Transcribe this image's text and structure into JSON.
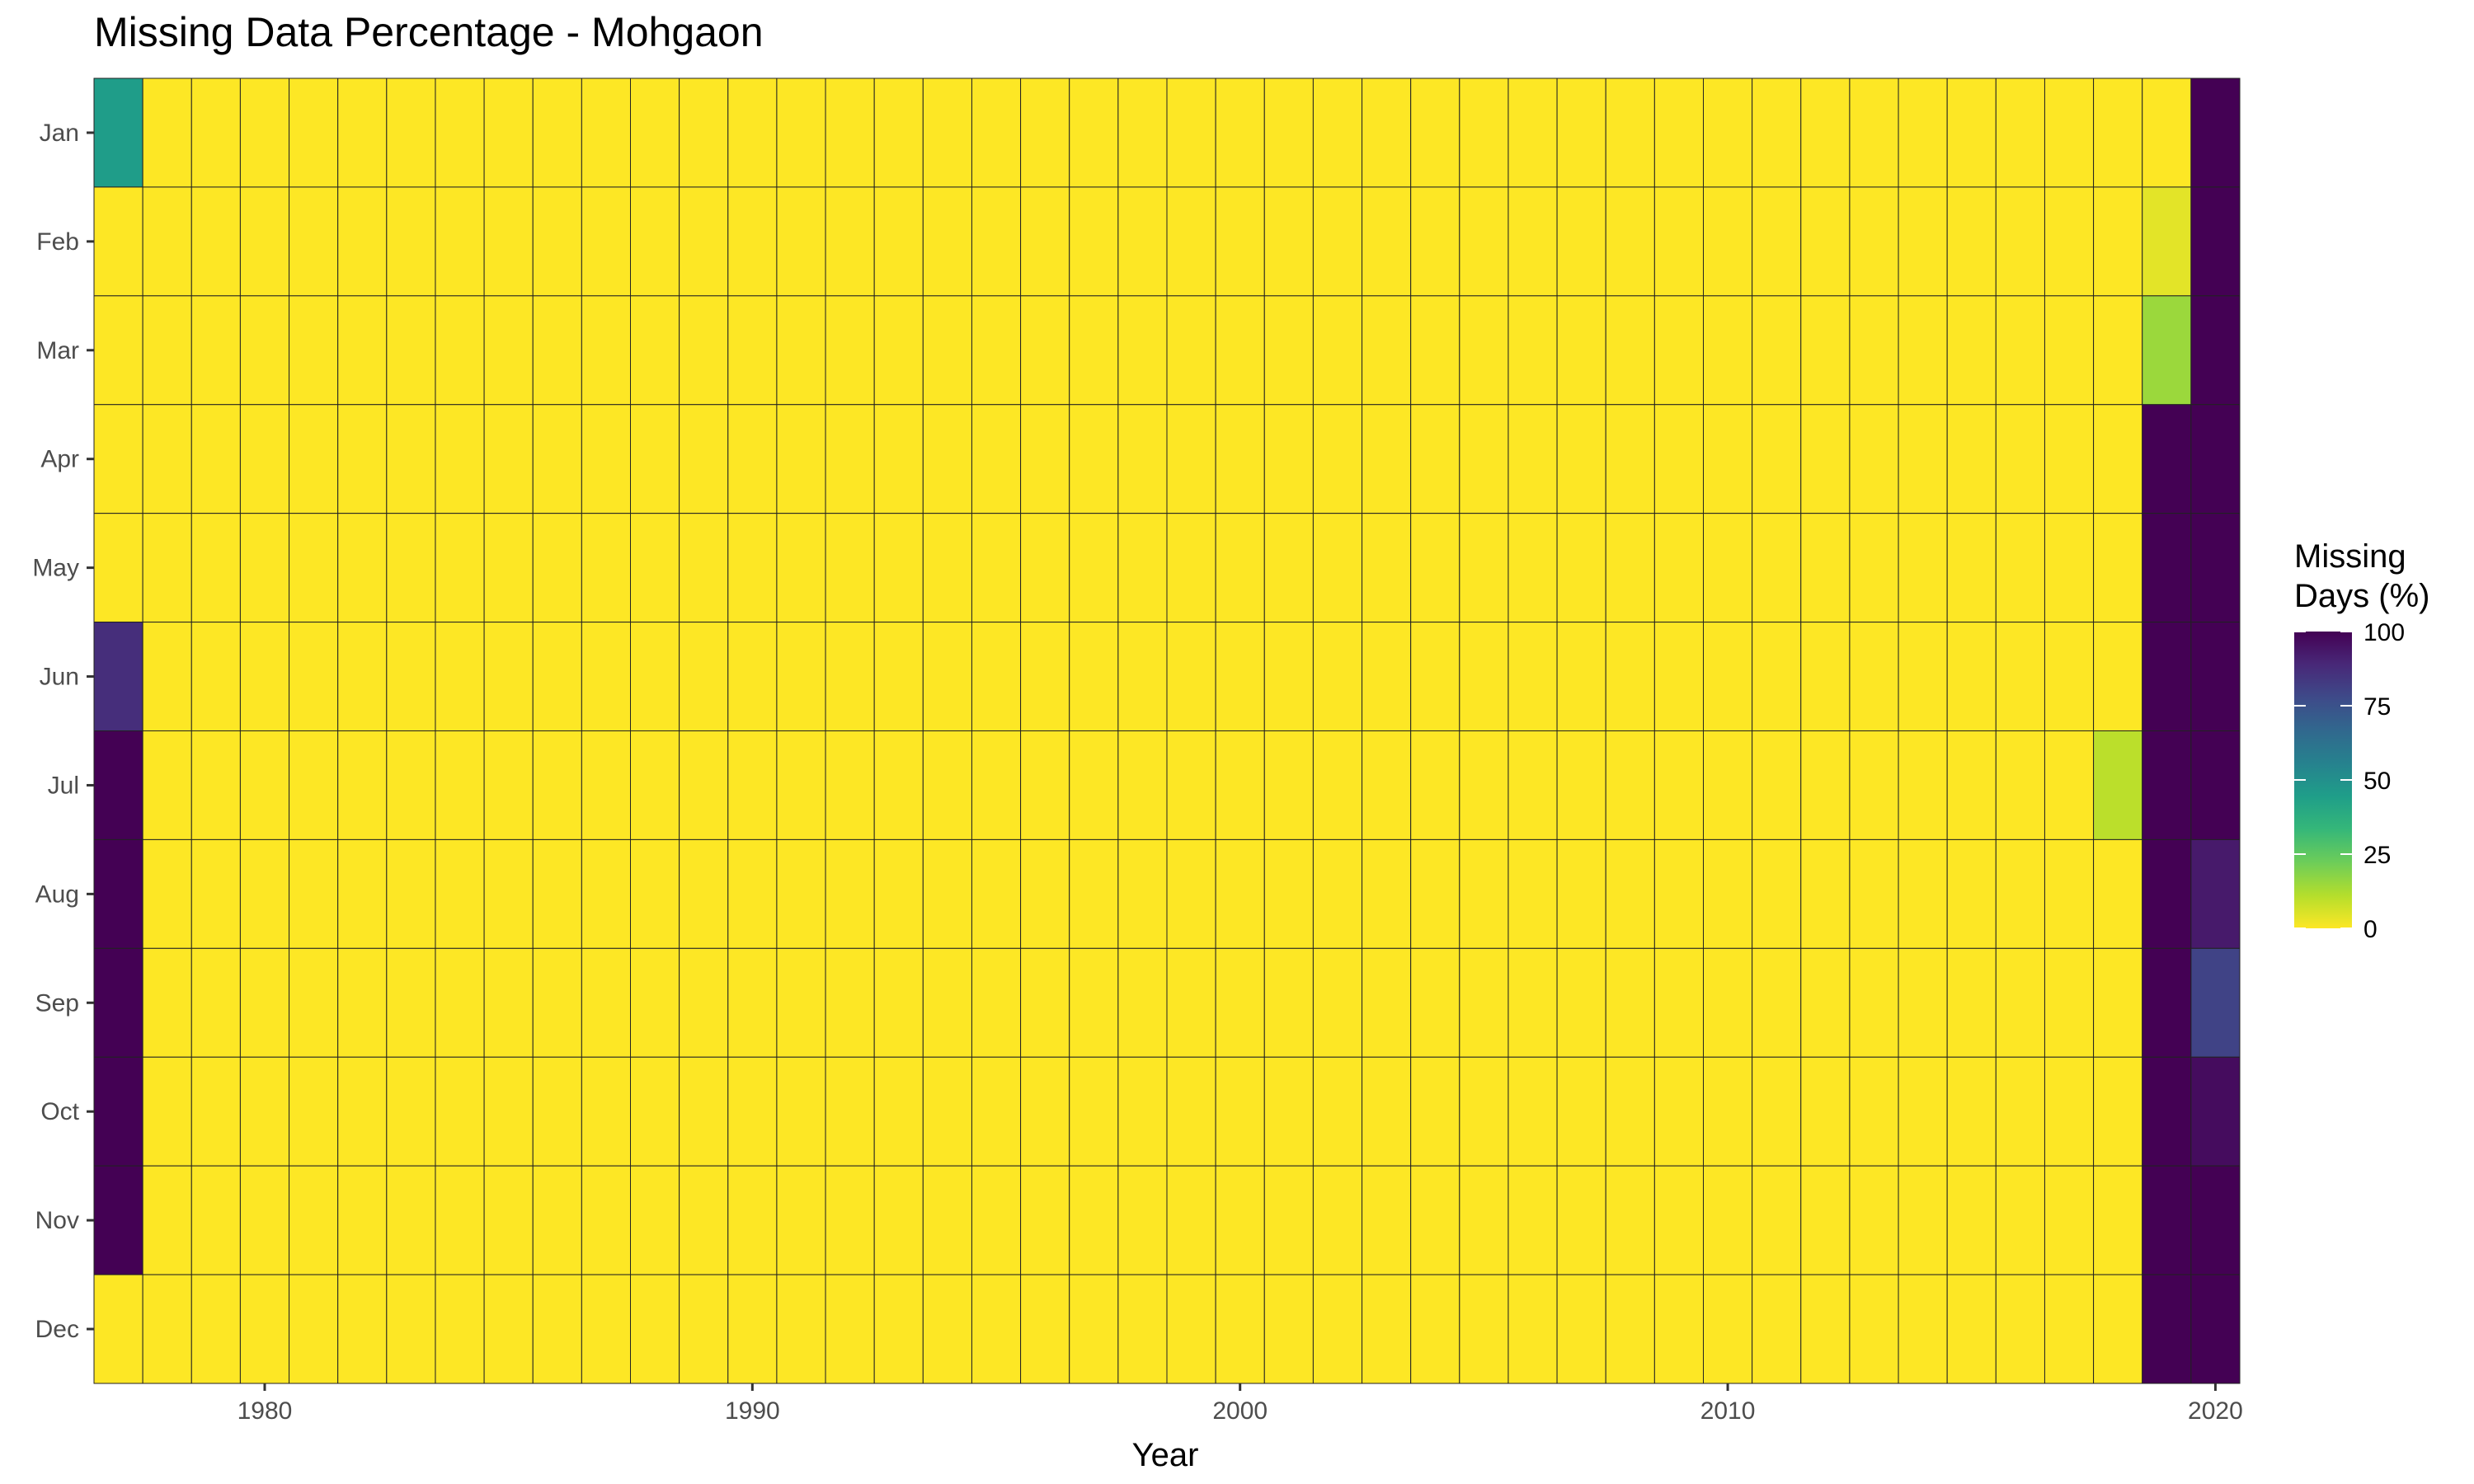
{
  "chart_data": {
    "type": "heatmap",
    "title": "Missing Data Percentage - Mohgaon",
    "xlabel": "Year",
    "ylabel": "",
    "x_start": 1977,
    "x_end": 2020,
    "x_ticks": [
      1980,
      1990,
      2000,
      2010,
      2020
    ],
    "months": [
      "Jan",
      "Feb",
      "Mar",
      "Apr",
      "May",
      "Jun",
      "Jul",
      "Aug",
      "Sep",
      "Oct",
      "Nov",
      "Dec"
    ],
    "default_value": 0,
    "cells": [
      {
        "year": 1977,
        "month": "Jan",
        "value": 45
      },
      {
        "year": 1977,
        "month": "Jun",
        "value": 87
      },
      {
        "year": 1977,
        "month": "Jul",
        "value": 100
      },
      {
        "year": 1977,
        "month": "Aug",
        "value": 100
      },
      {
        "year": 1977,
        "month": "Sep",
        "value": 100
      },
      {
        "year": 1977,
        "month": "Oct",
        "value": 100
      },
      {
        "year": 1977,
        "month": "Nov",
        "value": 100
      },
      {
        "year": 2018,
        "month": "Jul",
        "value": 10
      },
      {
        "year": 2019,
        "month": "Feb",
        "value": 4
      },
      {
        "year": 2019,
        "month": "Mar",
        "value": 15
      },
      {
        "year": 2019,
        "month": "Apr",
        "value": 100
      },
      {
        "year": 2019,
        "month": "May",
        "value": 100
      },
      {
        "year": 2019,
        "month": "Jun",
        "value": 100
      },
      {
        "year": 2019,
        "month": "Jul",
        "value": 100
      },
      {
        "year": 2019,
        "month": "Aug",
        "value": 100
      },
      {
        "year": 2019,
        "month": "Sep",
        "value": 100
      },
      {
        "year": 2019,
        "month": "Oct",
        "value": 100
      },
      {
        "year": 2019,
        "month": "Nov",
        "value": 100
      },
      {
        "year": 2019,
        "month": "Dec",
        "value": 100
      },
      {
        "year": 2020,
        "month": "Jan",
        "value": 100
      },
      {
        "year": 2020,
        "month": "Feb",
        "value": 100
      },
      {
        "year": 2020,
        "month": "Mar",
        "value": 100
      },
      {
        "year": 2020,
        "month": "Apr",
        "value": 100
      },
      {
        "year": 2020,
        "month": "May",
        "value": 100
      },
      {
        "year": 2020,
        "month": "Jun",
        "value": 100
      },
      {
        "year": 2020,
        "month": "Jul",
        "value": 100
      },
      {
        "year": 2020,
        "month": "Aug",
        "value": 93
      },
      {
        "year": 2020,
        "month": "Sep",
        "value": 80
      },
      {
        "year": 2020,
        "month": "Oct",
        "value": 97
      },
      {
        "year": 2020,
        "month": "Nov",
        "value": 100
      },
      {
        "year": 2020,
        "month": "Dec",
        "value": 100
      }
    ],
    "legend": {
      "title_line1": "Missing",
      "title_line2": "Days (%)",
      "min": 0,
      "max": 100,
      "ticks": [
        0,
        25,
        50,
        75,
        100
      ],
      "placement": "right"
    },
    "colorscale": "viridis-reversed",
    "colors": [
      "#FDE725",
      "#B4DE2C",
      "#6DCD59",
      "#35B779",
      "#1F9E89",
      "#26828E",
      "#31688E",
      "#3E4A89",
      "#482878",
      "#440154"
    ],
    "grid": false
  }
}
